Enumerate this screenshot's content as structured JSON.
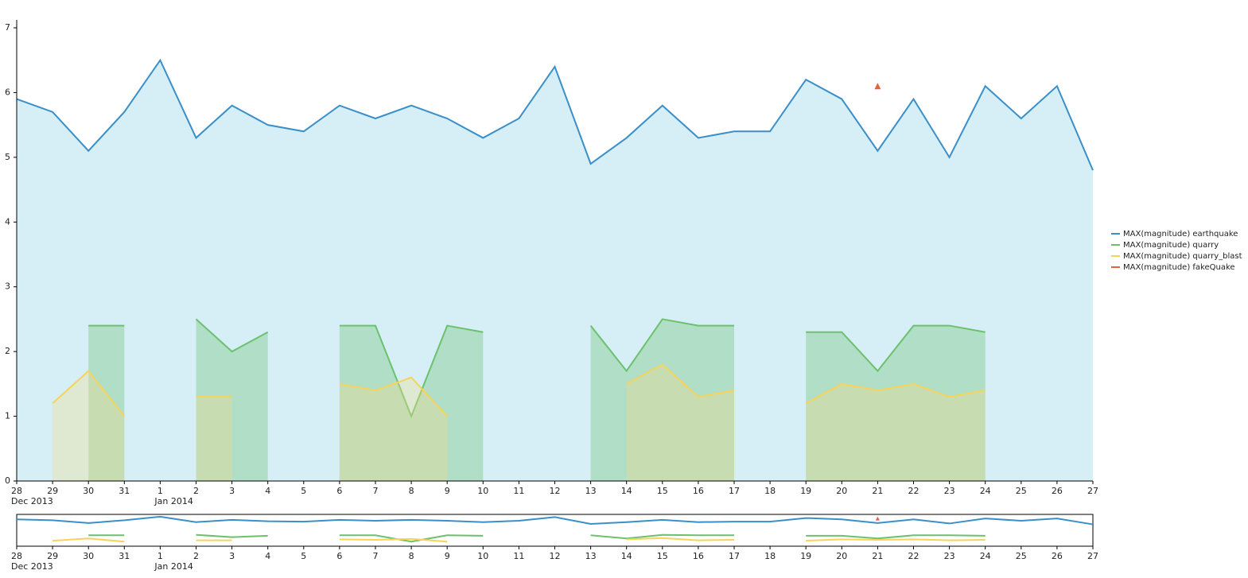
{
  "chart_data": {
    "type": "line",
    "x": [
      "2013-12-28",
      "2013-12-29",
      "2013-12-30",
      "2013-12-31",
      "2014-01-01",
      "2014-01-02",
      "2014-01-03",
      "2014-01-04",
      "2014-01-05",
      "2014-01-06",
      "2014-01-07",
      "2014-01-08",
      "2014-01-09",
      "2014-01-10",
      "2014-01-11",
      "2014-01-12",
      "2014-01-13",
      "2014-01-14",
      "2014-01-15",
      "2014-01-16",
      "2014-01-17",
      "2014-01-18",
      "2014-01-19",
      "2014-01-20",
      "2014-01-21",
      "2014-01-22",
      "2014-01-23",
      "2014-01-24",
      "2014-01-25",
      "2014-01-26",
      "2014-01-27"
    ],
    "xticks": [
      {
        "value": "2013-12-28",
        "label": "28"
      },
      {
        "value": "2013-12-29",
        "label": "29"
      },
      {
        "value": "2013-12-30",
        "label": "30"
      },
      {
        "value": "2013-12-31",
        "label": "31"
      },
      {
        "value": "2014-01-01",
        "label": "1"
      },
      {
        "value": "2014-01-02",
        "label": "2"
      },
      {
        "value": "2014-01-03",
        "label": "3"
      },
      {
        "value": "2014-01-04",
        "label": "4"
      },
      {
        "value": "2014-01-05",
        "label": "5"
      },
      {
        "value": "2014-01-06",
        "label": "6"
      },
      {
        "value": "2014-01-07",
        "label": "7"
      },
      {
        "value": "2014-01-08",
        "label": "8"
      },
      {
        "value": "2014-01-09",
        "label": "9"
      },
      {
        "value": "2014-01-10",
        "label": "10"
      },
      {
        "value": "2014-01-11",
        "label": "11"
      },
      {
        "value": "2014-01-12",
        "label": "12"
      },
      {
        "value": "2014-01-13",
        "label": "13"
      },
      {
        "value": "2014-01-14",
        "label": "14"
      },
      {
        "value": "2014-01-15",
        "label": "15"
      },
      {
        "value": "2014-01-16",
        "label": "16"
      },
      {
        "value": "2014-01-17",
        "label": "17"
      },
      {
        "value": "2014-01-18",
        "label": "18"
      },
      {
        "value": "2014-01-19",
        "label": "19"
      },
      {
        "value": "2014-01-20",
        "label": "20"
      },
      {
        "value": "2014-01-21",
        "label": "21"
      },
      {
        "value": "2014-01-22",
        "label": "22"
      },
      {
        "value": "2014-01-23",
        "label": "23"
      },
      {
        "value": "2014-01-24",
        "label": "24"
      },
      {
        "value": "2014-01-25",
        "label": "25"
      },
      {
        "value": "2014-01-26",
        "label": "26"
      },
      {
        "value": "2014-01-27",
        "label": "27"
      }
    ],
    "xticks_secondary": [
      {
        "value": "2013-12-28",
        "label": "Dec 2013"
      },
      {
        "value": "2014-01-01",
        "label": "Jan 2014"
      }
    ],
    "ylim": [
      0,
      7
    ],
    "yticks": [
      0,
      1,
      2,
      3,
      4,
      5,
      6,
      7
    ],
    "series": [
      {
        "name": "MAX(magnitude) earthquake",
        "color": "#3b8fc8",
        "area": "#d6eef6",
        "values": [
          5.9,
          5.7,
          5.1,
          5.7,
          6.5,
          5.3,
          5.8,
          5.5,
          5.4,
          5.8,
          5.6,
          5.8,
          5.6,
          5.3,
          5.6,
          6.4,
          4.9,
          5.3,
          5.8,
          5.3,
          5.4,
          5.4,
          6.2,
          5.9,
          5.1,
          5.9,
          5.0,
          6.1,
          5.6,
          6.1,
          4.8
        ]
      },
      {
        "name": "MAX(magnitude) quarry",
        "color": "#6cc16e",
        "area": "#6cc16e",
        "values": [
          null,
          null,
          2.4,
          2.4,
          null,
          2.5,
          2.0,
          2.3,
          null,
          2.4,
          2.4,
          1.0,
          2.4,
          2.3,
          null,
          null,
          2.4,
          1.7,
          2.5,
          2.4,
          2.4,
          null,
          2.3,
          2.3,
          1.7,
          2.4,
          2.4,
          2.3,
          null,
          null,
          null
        ]
      },
      {
        "name": "MAX(magnitude) quarry_blast",
        "color": "#f7d35a",
        "area": "#f2dc8a",
        "values": [
          null,
          1.2,
          1.7,
          1.0,
          null,
          1.3,
          1.3,
          null,
          null,
          1.5,
          1.4,
          1.6,
          1.0,
          null,
          null,
          null,
          null,
          1.5,
          1.8,
          1.3,
          1.4,
          null,
          1.2,
          1.5,
          1.4,
          1.5,
          1.3,
          1.4,
          null,
          null,
          null
        ]
      },
      {
        "name": "MAX(magnitude) fakeQuake",
        "color": "#e8603c",
        "marker": "triangle",
        "values": [
          null,
          null,
          null,
          null,
          null,
          null,
          null,
          null,
          null,
          null,
          null,
          null,
          null,
          null,
          null,
          null,
          null,
          null,
          null,
          null,
          null,
          null,
          null,
          null,
          6.1,
          null,
          null,
          null,
          null,
          null,
          null
        ]
      }
    ]
  }
}
